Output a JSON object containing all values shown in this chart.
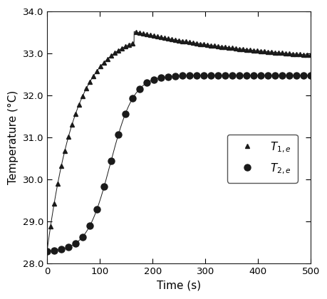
{
  "title": "",
  "xlabel": "Time (s)",
  "ylabel": "Temperature (°C)",
  "xlim": [
    0,
    500
  ],
  "ylim": [
    28.0,
    34.0
  ],
  "xticks": [
    0,
    100,
    200,
    300,
    400,
    500
  ],
  "yticks": [
    28.0,
    29.0,
    30.0,
    31.0,
    32.0,
    33.0,
    34.0
  ],
  "line_color": "#1a1a1a",
  "background_color": "#ffffff",
  "legend_labels": [
    "$T_{1,e}$",
    "$T_{2,e}$"
  ],
  "T1_params": {
    "T_start": 28.3,
    "T_peak": 33.52,
    "T_end": 32.72,
    "t_peak": 165,
    "rise_tau": 55,
    "fall_tau": 280
  },
  "T2_params": {
    "T_start": 28.3,
    "T_plateau": 32.48,
    "t_inflect": 120,
    "rise_k": 0.045
  },
  "T1_marker_count": 75,
  "T2_marker_count": 38,
  "marker_size_t1": 4.5,
  "marker_size_t2": 6.5
}
